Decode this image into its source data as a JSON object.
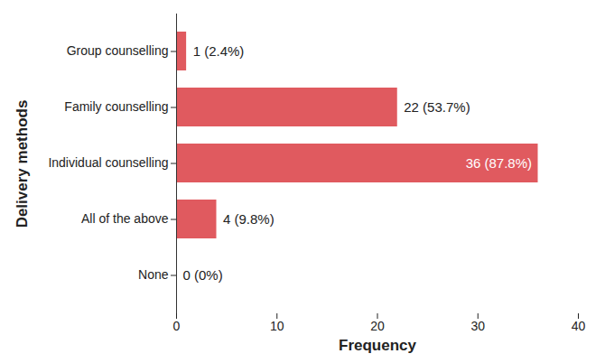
{
  "chart_data": {
    "type": "bar",
    "orientation": "horizontal",
    "categories": [
      "Group counselling",
      "Family counselling",
      "Individual counselling",
      "All of the above",
      "None"
    ],
    "values": [
      1,
      22,
      36,
      4,
      0
    ],
    "value_labels": [
      "1 (2.4%)",
      "22 (53.7%)",
      "36 (87.8%)",
      "4 (9.8%)",
      "0 (0%)"
    ],
    "data_labels": true,
    "color": "#e05a5f",
    "x_label": "Frequency",
    "y_label": "Delivery methods",
    "xlim": [
      0,
      40
    ],
    "xticks": [
      0,
      10,
      20,
      30,
      40
    ],
    "grid": false
  }
}
